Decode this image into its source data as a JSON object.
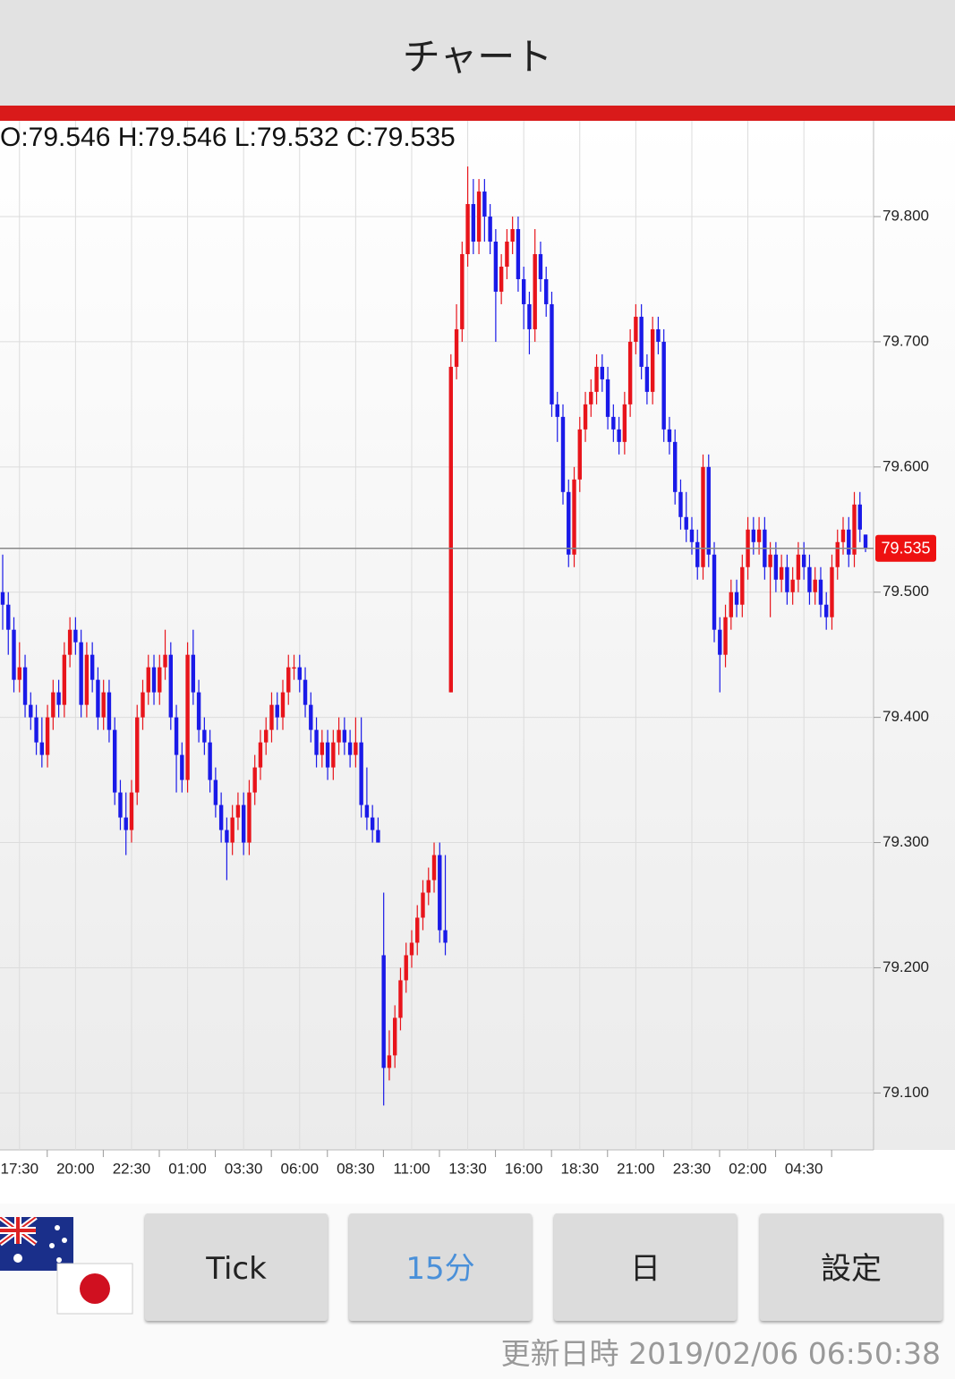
{
  "header": {
    "title": "チャート"
  },
  "chart_data": {
    "type": "candlestick",
    "ohlc_label": "O:79.546 H:79.546 L:79.532 C:79.535",
    "up_color": "#e8141b",
    "down_color": "#1a1ae8",
    "ylim": [
      79.0545,
      79.8765
    ],
    "yticks": [
      {
        "value": 79.1,
        "label": "79.100"
      },
      {
        "value": 79.2,
        "label": "79.200"
      },
      {
        "value": 79.3,
        "label": "79.300"
      },
      {
        "value": 79.4,
        "label": "79.400"
      },
      {
        "value": 79.5,
        "label": "79.500"
      },
      {
        "value": 79.6,
        "label": "79.600"
      },
      {
        "value": 79.7,
        "label": "79.700"
      },
      {
        "value": 79.8,
        "label": "79.800"
      }
    ],
    "grid": true,
    "xticks": [
      "17:30",
      "20:00",
      "22:30",
      "01:00",
      "03:30",
      "06:00",
      "08:30",
      "11:00",
      "13:30",
      "16:00",
      "18:30",
      "21:00",
      "23:30",
      "02:00",
      "04:30"
    ],
    "last_price": {
      "value": 79.535,
      "label": "79.535"
    },
    "candles": [
      [
        79.5,
        79.53,
        79.47,
        79.49
      ],
      [
        79.49,
        79.5,
        79.45,
        79.47
      ],
      [
        79.47,
        79.48,
        79.42,
        79.43
      ],
      [
        79.43,
        79.46,
        79.42,
        79.44
      ],
      [
        79.44,
        79.45,
        79.4,
        79.41
      ],
      [
        79.41,
        79.42,
        79.39,
        79.4
      ],
      [
        79.4,
        79.41,
        79.37,
        79.38
      ],
      [
        79.38,
        79.4,
        79.36,
        79.37
      ],
      [
        79.37,
        79.41,
        79.36,
        79.4
      ],
      [
        79.4,
        79.43,
        79.39,
        79.42
      ],
      [
        79.42,
        79.43,
        79.4,
        79.41
      ],
      [
        79.41,
        79.46,
        79.4,
        79.45
      ],
      [
        79.45,
        79.48,
        79.44,
        79.47
      ],
      [
        79.47,
        79.48,
        79.45,
        79.46
      ],
      [
        79.46,
        79.47,
        79.4,
        79.41
      ],
      [
        79.41,
        79.46,
        79.4,
        79.45
      ],
      [
        79.45,
        79.46,
        79.42,
        79.43
      ],
      [
        79.43,
        79.44,
        79.39,
        79.4
      ],
      [
        79.4,
        79.43,
        79.39,
        79.42
      ],
      [
        79.42,
        79.43,
        79.38,
        79.39
      ],
      [
        79.39,
        79.4,
        79.33,
        79.34
      ],
      [
        79.34,
        79.35,
        79.31,
        79.32
      ],
      [
        79.32,
        79.34,
        79.29,
        79.31
      ],
      [
        79.31,
        79.35,
        79.3,
        79.34
      ],
      [
        79.34,
        79.41,
        79.33,
        79.4
      ],
      [
        79.4,
        79.43,
        79.39,
        79.42
      ],
      [
        79.42,
        79.45,
        79.41,
        79.44
      ],
      [
        79.44,
        79.45,
        79.41,
        79.42
      ],
      [
        79.42,
        79.45,
        79.41,
        79.44
      ],
      [
        79.44,
        79.47,
        79.43,
        79.45
      ],
      [
        79.45,
        79.46,
        79.39,
        79.4
      ],
      [
        79.4,
        79.41,
        79.34,
        79.37
      ],
      [
        79.37,
        79.38,
        79.34,
        79.35
      ],
      [
        79.35,
        79.46,
        79.34,
        79.45
      ],
      [
        79.45,
        79.47,
        79.41,
        79.42
      ],
      [
        79.42,
        79.43,
        79.38,
        79.39
      ],
      [
        79.39,
        79.4,
        79.37,
        79.38
      ],
      [
        79.38,
        79.39,
        79.34,
        79.35
      ],
      [
        79.35,
        79.36,
        79.32,
        79.33
      ],
      [
        79.33,
        79.34,
        79.3,
        79.31
      ],
      [
        79.31,
        79.32,
        79.27,
        79.3
      ],
      [
        79.3,
        79.33,
        79.29,
        79.32
      ],
      [
        79.32,
        79.34,
        79.31,
        79.33
      ],
      [
        79.33,
        79.34,
        79.29,
        79.3
      ],
      [
        79.3,
        79.35,
        79.29,
        79.34
      ],
      [
        79.34,
        79.37,
        79.33,
        79.36
      ],
      [
        79.36,
        79.39,
        79.35,
        79.38
      ],
      [
        79.38,
        79.4,
        79.37,
        79.39
      ],
      [
        79.39,
        79.42,
        79.38,
        79.41
      ],
      [
        79.41,
        79.42,
        79.39,
        79.4
      ],
      [
        79.4,
        79.43,
        79.39,
        79.42
      ],
      [
        79.42,
        79.45,
        79.41,
        79.44
      ],
      [
        79.44,
        79.45,
        79.43,
        79.44
      ],
      [
        79.44,
        79.45,
        79.42,
        79.43
      ],
      [
        79.43,
        79.44,
        79.4,
        79.41
      ],
      [
        79.41,
        79.42,
        79.38,
        79.39
      ],
      [
        79.39,
        79.4,
        79.36,
        79.37
      ],
      [
        79.37,
        79.39,
        79.36,
        79.38
      ],
      [
        79.38,
        79.39,
        79.35,
        79.36
      ],
      [
        79.36,
        79.39,
        79.35,
        79.38
      ],
      [
        79.38,
        79.4,
        79.37,
        79.39
      ],
      [
        79.39,
        79.4,
        79.37,
        79.38
      ],
      [
        79.38,
        79.39,
        79.36,
        79.37
      ],
      [
        79.37,
        79.4,
        79.36,
        79.38
      ],
      [
        79.38,
        79.4,
        79.32,
        79.33
      ],
      [
        79.33,
        79.36,
        79.31,
        79.32
      ],
      [
        79.32,
        79.33,
        79.3,
        79.31
      ],
      [
        79.31,
        79.32,
        79.3,
        79.3
      ],
      [
        79.21,
        79.26,
        79.09,
        79.12
      ],
      [
        79.12,
        79.15,
        79.11,
        79.13
      ],
      [
        79.13,
        79.17,
        79.12,
        79.16
      ],
      [
        79.16,
        79.2,
        79.15,
        79.19
      ],
      [
        79.19,
        79.22,
        79.18,
        79.21
      ],
      [
        79.21,
        79.23,
        79.2,
        79.22
      ],
      [
        79.22,
        79.25,
        79.21,
        79.24
      ],
      [
        79.24,
        79.27,
        79.23,
        79.26
      ],
      [
        79.26,
        79.28,
        79.25,
        79.27
      ],
      [
        79.27,
        79.3,
        79.26,
        79.29
      ],
      [
        79.29,
        79.3,
        79.22,
        79.23
      ],
      [
        79.23,
        79.29,
        79.21,
        79.22
      ],
      [
        79.42,
        79.69,
        79.42,
        79.68
      ],
      [
        79.68,
        79.73,
        79.67,
        79.71
      ],
      [
        79.71,
        79.78,
        79.7,
        79.77
      ],
      [
        79.77,
        79.84,
        79.76,
        79.81
      ],
      [
        79.81,
        79.83,
        79.77,
        79.78
      ],
      [
        79.78,
        79.83,
        79.77,
        79.82
      ],
      [
        79.82,
        79.83,
        79.78,
        79.8
      ],
      [
        79.8,
        79.81,
        79.77,
        79.78
      ],
      [
        79.78,
        79.79,
        79.7,
        79.74
      ],
      [
        79.74,
        79.77,
        79.73,
        79.76
      ],
      [
        79.76,
        79.79,
        79.75,
        79.78
      ],
      [
        79.78,
        79.8,
        79.77,
        79.79
      ],
      [
        79.79,
        79.8,
        79.74,
        79.75
      ],
      [
        79.75,
        79.76,
        79.71,
        79.73
      ],
      [
        79.73,
        79.74,
        79.69,
        79.71
      ],
      [
        79.71,
        79.79,
        79.7,
        79.77
      ],
      [
        79.77,
        79.78,
        79.74,
        79.75
      ],
      [
        79.75,
        79.76,
        79.72,
        79.73
      ],
      [
        79.73,
        79.74,
        79.64,
        79.65
      ],
      [
        79.65,
        79.66,
        79.62,
        79.64
      ],
      [
        79.64,
        79.65,
        79.57,
        79.58
      ],
      [
        79.58,
        79.59,
        79.52,
        79.53
      ],
      [
        79.53,
        79.6,
        79.52,
        79.59
      ],
      [
        79.59,
        79.64,
        79.58,
        79.63
      ],
      [
        79.63,
        79.66,
        79.62,
        79.65
      ],
      [
        79.65,
        79.67,
        79.64,
        79.66
      ],
      [
        79.66,
        79.69,
        79.65,
        79.68
      ],
      [
        79.68,
        79.69,
        79.66,
        79.67
      ],
      [
        79.67,
        79.68,
        79.63,
        79.64
      ],
      [
        79.64,
        79.65,
        79.62,
        79.63
      ],
      [
        79.63,
        79.64,
        79.61,
        79.62
      ],
      [
        79.62,
        79.66,
        79.61,
        79.65
      ],
      [
        79.65,
        79.71,
        79.64,
        79.7
      ],
      [
        79.7,
        79.73,
        79.69,
        79.72
      ],
      [
        79.72,
        79.73,
        79.67,
        79.68
      ],
      [
        79.68,
        79.69,
        79.65,
        79.66
      ],
      [
        79.66,
        79.72,
        79.65,
        79.71
      ],
      [
        79.71,
        79.72,
        79.69,
        79.7
      ],
      [
        79.7,
        79.71,
        79.62,
        79.63
      ],
      [
        79.63,
        79.64,
        79.61,
        79.62
      ],
      [
        79.62,
        79.63,
        79.57,
        79.58
      ],
      [
        79.58,
        79.59,
        79.55,
        79.56
      ],
      [
        79.56,
        79.58,
        79.54,
        79.55
      ],
      [
        79.55,
        79.56,
        79.53,
        79.54
      ],
      [
        79.54,
        79.55,
        79.51,
        79.52
      ],
      [
        79.52,
        79.61,
        79.51,
        79.6
      ],
      [
        79.6,
        79.61,
        79.52,
        79.53
      ],
      [
        79.53,
        79.54,
        79.46,
        79.47
      ],
      [
        79.47,
        79.48,
        79.42,
        79.45
      ],
      [
        79.45,
        79.49,
        79.44,
        79.48
      ],
      [
        79.48,
        79.51,
        79.47,
        79.5
      ],
      [
        79.5,
        79.51,
        79.48,
        79.49
      ],
      [
        79.49,
        79.53,
        79.48,
        79.52
      ],
      [
        79.52,
        79.56,
        79.51,
        79.55
      ],
      [
        79.55,
        79.56,
        79.53,
        79.54
      ],
      [
        79.54,
        79.56,
        79.53,
        79.55
      ],
      [
        79.55,
        79.56,
        79.51,
        79.52
      ],
      [
        79.52,
        79.54,
        79.48,
        79.53
      ],
      [
        79.53,
        79.54,
        79.5,
        79.51
      ],
      [
        79.51,
        79.53,
        79.5,
        79.52
      ],
      [
        79.52,
        79.53,
        79.49,
        79.5
      ],
      [
        79.5,
        79.52,
        79.49,
        79.51
      ],
      [
        79.51,
        79.54,
        79.5,
        79.53
      ],
      [
        79.53,
        79.54,
        79.51,
        79.52
      ],
      [
        79.52,
        79.53,
        79.49,
        79.5
      ],
      [
        79.5,
        79.52,
        79.49,
        79.51
      ],
      [
        79.51,
        79.52,
        79.48,
        79.49
      ],
      [
        79.49,
        79.5,
        79.47,
        79.48
      ],
      [
        79.48,
        79.53,
        79.47,
        79.52
      ],
      [
        79.52,
        79.55,
        79.51,
        79.54
      ],
      [
        79.54,
        79.56,
        79.53,
        79.55
      ],
      [
        79.55,
        79.56,
        79.52,
        79.53
      ],
      [
        79.53,
        79.58,
        79.52,
        79.57
      ],
      [
        79.57,
        79.58,
        79.54,
        79.55
      ],
      [
        79.546,
        79.546,
        79.532,
        79.535
      ]
    ]
  },
  "buttons": [
    "Tick",
    "15分",
    "日",
    "設定"
  ],
  "footer": {
    "updated": "更新日時 2019/02/06 06:50:38"
  }
}
